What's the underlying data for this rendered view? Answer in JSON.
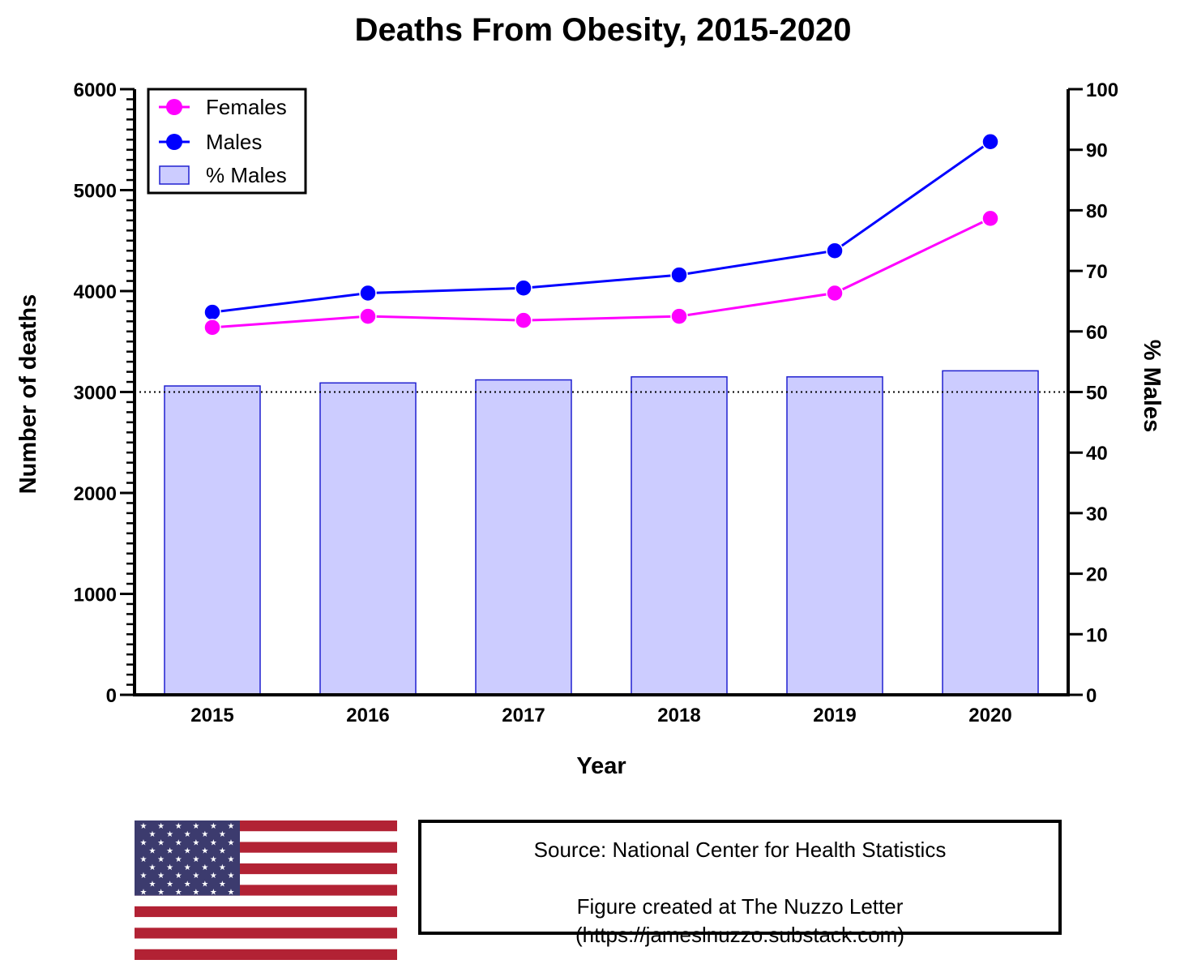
{
  "chart_data": {
    "type": "bar+line",
    "title": "Deaths From Obesity, 2015-2020",
    "xlabel": "Year",
    "ylabel": "Number of deaths",
    "y2label": "% Males",
    "categories": [
      "2015",
      "2016",
      "2017",
      "2018",
      "2019",
      "2020"
    ],
    "ylim": [
      0,
      6000
    ],
    "yticks": [
      0,
      1000,
      2000,
      3000,
      4000,
      5000,
      6000
    ],
    "y2lim": [
      0,
      100
    ],
    "y2ticks": [
      0,
      10,
      20,
      30,
      40,
      50,
      60,
      70,
      80,
      90,
      100
    ],
    "reference_line": {
      "axis": "y2",
      "value": 50,
      "style": "dotted"
    },
    "series": [
      {
        "name": "Females",
        "type": "line",
        "axis": "y",
        "color": "#ff00ff",
        "values": [
          3640,
          3750,
          3710,
          3750,
          3980,
          4720
        ]
      },
      {
        "name": "Males",
        "type": "line",
        "axis": "y",
        "color": "#0000ff",
        "values": [
          3790,
          3980,
          4030,
          4160,
          4400,
          5480
        ]
      },
      {
        "name": "% Males",
        "type": "bar",
        "axis": "y2",
        "color": "#ccccff",
        "edge_color": "#2020d0",
        "values": [
          51.0,
          51.5,
          52.0,
          52.5,
          52.5,
          53.5
        ]
      }
    ],
    "legend": [
      "Females",
      "Males",
      "% Males"
    ],
    "legend_position": "top-left"
  },
  "footer": {
    "source": "Source: National Center for Health Statistics",
    "credit": "Figure created at The Nuzzo Letter",
    "url": "(https://jameslnuzzo.substack.com)"
  },
  "flag_icon": "us-flag-icon",
  "colors": {
    "flag_red": "#b22234",
    "flag_blue": "#3c3b6e",
    "flag_white": "#ffffff"
  }
}
